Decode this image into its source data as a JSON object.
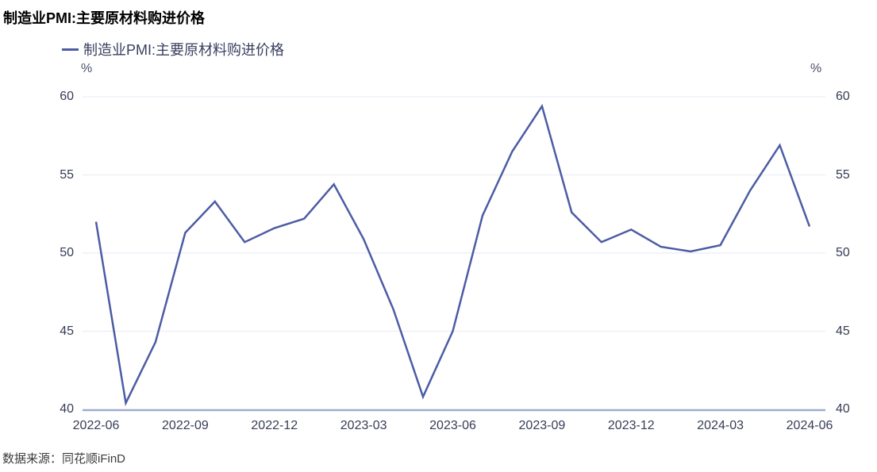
{
  "title": "制造业PMI:主要原材料购进价格",
  "legend": {
    "label": "制造业PMI:主要原材料购进价格"
  },
  "footer": {
    "source_label": "数据来源：同花顺iFinD"
  },
  "colors": {
    "series": "#4c5ca4",
    "grid": "#eceef6",
    "axis_line": "#9fabce",
    "tick_text": "#363c55",
    "legend_text": "#3a4060",
    "title_text": "#000000",
    "footer_text": "#3c3c3c"
  },
  "chart_data": {
    "type": "line",
    "title": "制造业PMI:主要原材料购进价格",
    "x": [
      "2022-06",
      "2022-07",
      "2022-08",
      "2022-09",
      "2022-10",
      "2022-11",
      "2022-12",
      "2023-01",
      "2023-02",
      "2023-03",
      "2023-04",
      "2023-05",
      "2023-06",
      "2023-07",
      "2023-08",
      "2023-09",
      "2023-10",
      "2023-11",
      "2023-12",
      "2024-01",
      "2024-02",
      "2024-03",
      "2024-04",
      "2024-05",
      "2024-06"
    ],
    "series": [
      {
        "name": "制造业PMI:主要原材料购进价格",
        "values": [
          52.0,
          40.4,
          44.3,
          51.3,
          53.3,
          50.7,
          51.6,
          52.2,
          54.4,
          50.9,
          46.4,
          40.8,
          45.0,
          52.4,
          56.5,
          59.4,
          52.6,
          50.7,
          51.5,
          50.4,
          50.1,
          50.5,
          54.0,
          56.9,
          51.7
        ]
      }
    ],
    "xlabel": "",
    "ylabel_left": "%",
    "ylabel_right": "%",
    "ylim": [
      40,
      60
    ],
    "yticks": [
      40,
      45,
      50,
      55,
      60
    ],
    "xtick_labels": [
      "2022-06",
      "2022-09",
      "2022-12",
      "2023-03",
      "2023-06",
      "2023-09",
      "2023-12",
      "2024-03",
      "2024-06"
    ],
    "grid": true,
    "legend_position": "top-left"
  }
}
